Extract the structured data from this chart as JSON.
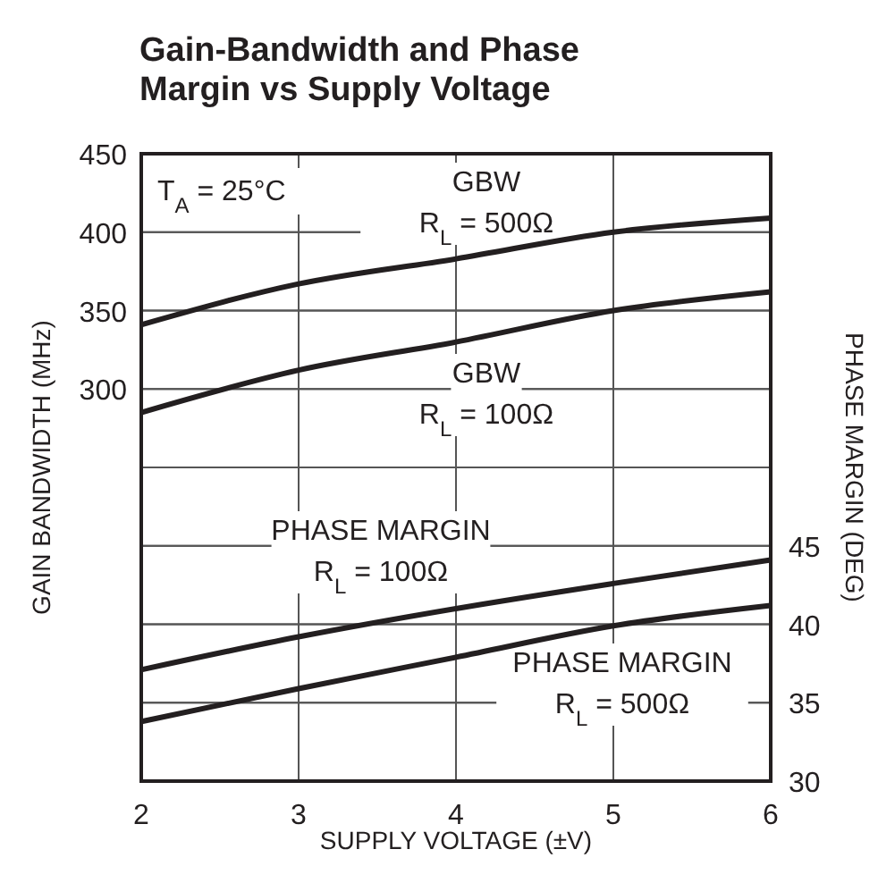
{
  "chart_data": {
    "type": "line",
    "title": "Gain-Bandwidth and Phase Margin vs Supply Voltage",
    "xlabel": "SUPPLY VOLTAGE (±V)",
    "ylabel": "GAIN BANDWIDTH (MHz)",
    "y2label": "PHASE MARGIN (DEG)",
    "x": [
      2,
      3,
      4,
      5,
      6
    ],
    "xlim": [
      2,
      6
    ],
    "xticks": [
      2,
      3,
      4,
      5,
      6
    ],
    "ylim": [
      50,
      450
    ],
    "yticks": [
      {
        "value": 50,
        "label": null
      },
      {
        "value": 100,
        "label": null
      },
      {
        "value": 150,
        "label": null
      },
      {
        "value": 200,
        "label": null
      },
      {
        "value": 250,
        "label": null
      },
      300,
      350,
      400,
      450
    ],
    "y2lim": [
      30,
      70
    ],
    "y2ticks": [
      30,
      35,
      40,
      45,
      {
        "value": 50,
        "label": null
      },
      {
        "value": 55,
        "label": null
      },
      {
        "value": 60,
        "label": null
      },
      {
        "value": 65,
        "label": null
      },
      {
        "value": 70,
        "label": null
      }
    ],
    "grid": true,
    "marker": "none",
    "line_style": "solid",
    "annotations": [
      "T$_{A}$ = 25°C"
    ],
    "series": [
      {
        "name": "GBW\nR$_{L}$ = 500Ω",
        "color": "#231f20",
        "values": [
          341,
          367,
          383,
          400,
          409
        ]
      },
      {
        "name": "GBW\nR$_{L}$ = 100Ω",
        "color": "#231f20",
        "values": [
          285,
          312,
          330,
          350,
          362
        ]
      },
      {
        "name": "PHASE MARGIN\nR$_{L}$ = 100Ω",
        "color": "#231f20",
        "axis": "y2",
        "values": [
          37.1,
          39.2,
          41.0,
          42.6,
          44.1
        ]
      },
      {
        "name": "PHASE MARGIN\nR$_{L}$ = 500Ω",
        "color": "#231f20",
        "axis": "y2",
        "values": [
          33.8,
          35.9,
          37.9,
          39.9,
          41.2
        ]
      }
    ]
  }
}
